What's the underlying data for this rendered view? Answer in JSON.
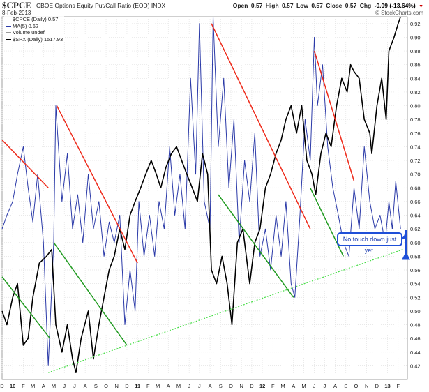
{
  "header": {
    "ticker": "$CPCE",
    "description": "CBOE Options Equity Put/Call Ratio (EOD)",
    "exchange": "INDX",
    "date": "8-Feb-2013",
    "brand": "© StockCharts.com",
    "open_label": "Open",
    "open": "0.57",
    "high_label": "High",
    "high": "0.57",
    "low_label": "Low",
    "low": "0.57",
    "close_label": "Close",
    "close": "0.57",
    "chg_label": "Chg",
    "chg": "-0.09 (-13.64%)"
  },
  "legend": {
    "items": [
      {
        "label": "$CPCE (Daily) 0.57",
        "color": "#ffffff"
      },
      {
        "label": "MA(5) 0.62",
        "color": "#2b3aa8"
      },
      {
        "label": "Volume undef",
        "color": "#999999"
      },
      {
        "label": "$SPX (Daily) 1517.93",
        "color": "#000000"
      }
    ]
  },
  "annotation": {
    "text": "No touch down just yet.",
    "color": "#1f4fd8"
  },
  "colors": {
    "ma": "#2b3aa8",
    "spx": "#000000",
    "down_trend": "#ee2a1a",
    "green_trend": "#1f9a1f",
    "support": "#44dd44",
    "arrow": "#1f4fd8"
  },
  "chart_data": {
    "type": "line",
    "y_axis": {
      "side": "right",
      "ylim": [
        0.4,
        0.93
      ],
      "ticks": [
        0.42,
        0.44,
        0.46,
        0.48,
        0.5,
        0.52,
        0.54,
        0.56,
        0.58,
        0.6,
        0.62,
        0.64,
        0.66,
        0.68,
        0.7,
        0.72,
        0.74,
        0.76,
        0.78,
        0.8,
        0.82,
        0.84,
        0.86,
        0.88,
        0.9,
        0.92
      ]
    },
    "x_axis": {
      "range": [
        "2009-12-01",
        "2013-02-28"
      ],
      "ticks": [
        {
          "date": "2009-12-01",
          "label": "D"
        },
        {
          "date": "2010-01-01",
          "label": "10"
        },
        {
          "date": "2010-02-01",
          "label": "F"
        },
        {
          "date": "2010-03-01",
          "label": "M"
        },
        {
          "date": "2010-04-01",
          "label": "A"
        },
        {
          "date": "2010-05-01",
          "label": "M"
        },
        {
          "date": "2010-06-01",
          "label": "J"
        },
        {
          "date": "2010-07-01",
          "label": "J"
        },
        {
          "date": "2010-08-01",
          "label": "A"
        },
        {
          "date": "2010-09-01",
          "label": "S"
        },
        {
          "date": "2010-10-01",
          "label": "O"
        },
        {
          "date": "2010-11-01",
          "label": "N"
        },
        {
          "date": "2010-12-01",
          "label": "D"
        },
        {
          "date": "2011-01-01",
          "label": "11"
        },
        {
          "date": "2011-02-01",
          "label": "F"
        },
        {
          "date": "2011-03-01",
          "label": "M"
        },
        {
          "date": "2011-04-01",
          "label": "A"
        },
        {
          "date": "2011-05-01",
          "label": "M"
        },
        {
          "date": "2011-06-01",
          "label": "J"
        },
        {
          "date": "2011-07-01",
          "label": "J"
        },
        {
          "date": "2011-08-01",
          "label": "A"
        },
        {
          "date": "2011-09-01",
          "label": "S"
        },
        {
          "date": "2011-10-01",
          "label": "O"
        },
        {
          "date": "2011-11-01",
          "label": "N"
        },
        {
          "date": "2011-12-01",
          "label": "D"
        },
        {
          "date": "2012-01-01",
          "label": "12"
        },
        {
          "date": "2012-02-01",
          "label": "F"
        },
        {
          "date": "2012-03-01",
          "label": "M"
        },
        {
          "date": "2012-04-01",
          "label": "A"
        },
        {
          "date": "2012-05-01",
          "label": "M"
        },
        {
          "date": "2012-06-01",
          "label": "J"
        },
        {
          "date": "2012-07-01",
          "label": "J"
        },
        {
          "date": "2012-08-01",
          "label": "A"
        },
        {
          "date": "2012-09-01",
          "label": "S"
        },
        {
          "date": "2012-10-01",
          "label": "O"
        },
        {
          "date": "2012-11-01",
          "label": "N"
        },
        {
          "date": "2012-12-01",
          "label": "D"
        },
        {
          "date": "2013-01-01",
          "label": "13"
        },
        {
          "date": "2013-02-01",
          "label": "F"
        }
      ]
    },
    "grid": true,
    "series": [
      {
        "name": "MA(5)",
        "points": [
          [
            "2009-12-01",
            0.62
          ],
          [
            "2009-12-15",
            0.64
          ],
          [
            "2010-01-01",
            0.66
          ],
          [
            "2010-01-15",
            0.7
          ],
          [
            "2010-02-01",
            0.74
          ],
          [
            "2010-02-15",
            0.68
          ],
          [
            "2010-03-01",
            0.63
          ],
          [
            "2010-03-15",
            0.7
          ],
          [
            "2010-04-01",
            0.6
          ],
          [
            "2010-04-15",
            0.42
          ],
          [
            "2010-05-01",
            0.6
          ],
          [
            "2010-05-07",
            0.8
          ],
          [
            "2010-05-25",
            0.66
          ],
          [
            "2010-06-10",
            0.73
          ],
          [
            "2010-06-25",
            0.62
          ],
          [
            "2010-07-10",
            0.67
          ],
          [
            "2010-07-25",
            0.6
          ],
          [
            "2010-08-10",
            0.7
          ],
          [
            "2010-08-25",
            0.62
          ],
          [
            "2010-09-10",
            0.66
          ],
          [
            "2010-09-25",
            0.58
          ],
          [
            "2010-10-10",
            0.63
          ],
          [
            "2010-10-25",
            0.6
          ],
          [
            "2010-11-10",
            0.64
          ],
          [
            "2010-11-25",
            0.48
          ],
          [
            "2010-12-10",
            0.56
          ],
          [
            "2010-12-25",
            0.5
          ],
          [
            "2011-01-05",
            0.66
          ],
          [
            "2011-01-20",
            0.58
          ],
          [
            "2011-02-05",
            0.64
          ],
          [
            "2011-02-20",
            0.58
          ],
          [
            "2011-03-05",
            0.66
          ],
          [
            "2011-03-20",
            0.62
          ],
          [
            "2011-04-05",
            0.74
          ],
          [
            "2011-04-20",
            0.64
          ],
          [
            "2011-05-05",
            0.7
          ],
          [
            "2011-05-20",
            0.62
          ],
          [
            "2011-06-05",
            0.84
          ],
          [
            "2011-06-20",
            0.7
          ],
          [
            "2011-07-01",
            0.92
          ],
          [
            "2011-07-15",
            0.66
          ],
          [
            "2011-08-01",
            0.62
          ],
          [
            "2011-08-10",
            0.93
          ],
          [
            "2011-08-25",
            0.74
          ],
          [
            "2011-09-10",
            0.84
          ],
          [
            "2011-09-25",
            0.68
          ],
          [
            "2011-10-10",
            0.78
          ],
          [
            "2011-10-25",
            0.6
          ],
          [
            "2011-11-10",
            0.72
          ],
          [
            "2011-11-25",
            0.66
          ],
          [
            "2011-12-10",
            0.76
          ],
          [
            "2011-12-25",
            0.58
          ],
          [
            "2012-01-10",
            0.62
          ],
          [
            "2012-01-25",
            0.56
          ],
          [
            "2012-02-10",
            0.64
          ],
          [
            "2012-02-25",
            0.58
          ],
          [
            "2012-03-10",
            0.66
          ],
          [
            "2012-03-25",
            0.54
          ],
          [
            "2012-04-05",
            0.52
          ],
          [
            "2012-04-20",
            0.64
          ],
          [
            "2012-05-05",
            0.78
          ],
          [
            "2012-05-20",
            0.72
          ],
          [
            "2012-06-01",
            0.9
          ],
          [
            "2012-06-10",
            0.8
          ],
          [
            "2012-06-25",
            0.86
          ],
          [
            "2012-07-10",
            0.74
          ],
          [
            "2012-07-25",
            0.68
          ],
          [
            "2012-08-10",
            0.64
          ],
          [
            "2012-08-25",
            0.6
          ],
          [
            "2012-09-10",
            0.58
          ],
          [
            "2012-09-25",
            0.68
          ],
          [
            "2012-10-10",
            0.62
          ],
          [
            "2012-10-25",
            0.74
          ],
          [
            "2012-11-10",
            0.66
          ],
          [
            "2012-11-25",
            0.62
          ],
          [
            "2012-12-10",
            0.64
          ],
          [
            "2012-12-25",
            0.6
          ],
          [
            "2013-01-05",
            0.66
          ],
          [
            "2013-01-15",
            0.62
          ],
          [
            "2013-01-25",
            0.69
          ],
          [
            "2013-02-08",
            0.62
          ]
        ]
      },
      {
        "name": "$SPX (Daily)",
        "points": [
          [
            "2009-12-01",
            0.5
          ],
          [
            "2009-12-15",
            0.48
          ],
          [
            "2010-01-01",
            0.52
          ],
          [
            "2010-01-15",
            0.54
          ],
          [
            "2010-02-01",
            0.45
          ],
          [
            "2010-02-15",
            0.46
          ],
          [
            "2010-03-01",
            0.52
          ],
          [
            "2010-03-20",
            0.57
          ],
          [
            "2010-04-10",
            0.58
          ],
          [
            "2010-04-25",
            0.59
          ],
          [
            "2010-05-07",
            0.48
          ],
          [
            "2010-05-25",
            0.44
          ],
          [
            "2010-06-10",
            0.48
          ],
          [
            "2010-06-25",
            0.43
          ],
          [
            "2010-07-05",
            0.41
          ],
          [
            "2010-07-20",
            0.46
          ],
          [
            "2010-08-10",
            0.5
          ],
          [
            "2010-08-25",
            0.43
          ],
          [
            "2010-09-10",
            0.48
          ],
          [
            "2010-09-25",
            0.52
          ],
          [
            "2010-10-10",
            0.56
          ],
          [
            "2010-10-25",
            0.58
          ],
          [
            "2010-11-10",
            0.62
          ],
          [
            "2010-11-25",
            0.59
          ],
          [
            "2010-12-10",
            0.64
          ],
          [
            "2010-12-25",
            0.66
          ],
          [
            "2011-01-10",
            0.68
          ],
          [
            "2011-01-25",
            0.7
          ],
          [
            "2011-02-10",
            0.72
          ],
          [
            "2011-02-25",
            0.7
          ],
          [
            "2011-03-10",
            0.68
          ],
          [
            "2011-03-25",
            0.71
          ],
          [
            "2011-04-10",
            0.73
          ],
          [
            "2011-04-25",
            0.74
          ],
          [
            "2011-05-10",
            0.72
          ],
          [
            "2011-05-25",
            0.7
          ],
          [
            "2011-06-10",
            0.68
          ],
          [
            "2011-06-25",
            0.66
          ],
          [
            "2011-07-10",
            0.73
          ],
          [
            "2011-07-25",
            0.7
          ],
          [
            "2011-08-05",
            0.56
          ],
          [
            "2011-08-20",
            0.54
          ],
          [
            "2011-09-05",
            0.58
          ],
          [
            "2011-09-20",
            0.54
          ],
          [
            "2011-10-04",
            0.48
          ],
          [
            "2011-10-20",
            0.6
          ],
          [
            "2011-11-05",
            0.62
          ],
          [
            "2011-11-25",
            0.54
          ],
          [
            "2011-12-10",
            0.6
          ],
          [
            "2011-12-25",
            0.62
          ],
          [
            "2012-01-10",
            0.68
          ],
          [
            "2012-01-25",
            0.7
          ],
          [
            "2012-02-10",
            0.73
          ],
          [
            "2012-02-25",
            0.75
          ],
          [
            "2012-03-10",
            0.78
          ],
          [
            "2012-03-25",
            0.8
          ],
          [
            "2012-04-10",
            0.76
          ],
          [
            "2012-04-25",
            0.8
          ],
          [
            "2012-05-10",
            0.72
          ],
          [
            "2012-05-25",
            0.7
          ],
          [
            "2012-06-05",
            0.67
          ],
          [
            "2012-06-20",
            0.73
          ],
          [
            "2012-07-05",
            0.76
          ],
          [
            "2012-07-20",
            0.74
          ],
          [
            "2012-08-05",
            0.8
          ],
          [
            "2012-08-20",
            0.84
          ],
          [
            "2012-09-05",
            0.82
          ],
          [
            "2012-09-15",
            0.86
          ],
          [
            "2012-09-25",
            0.85
          ],
          [
            "2012-10-10",
            0.84
          ],
          [
            "2012-10-25",
            0.78
          ],
          [
            "2012-11-10",
            0.76
          ],
          [
            "2012-11-16",
            0.73
          ],
          [
            "2012-12-01",
            0.8
          ],
          [
            "2012-12-15",
            0.84
          ],
          [
            "2012-12-28",
            0.78
          ],
          [
            "2013-01-05",
            0.88
          ],
          [
            "2013-01-20",
            0.9
          ],
          [
            "2013-02-01",
            0.92
          ],
          [
            "2013-02-08",
            0.93
          ]
        ]
      }
    ],
    "trend_lines": [
      {
        "color": "red",
        "from": [
          "2009-12-01",
          0.75
        ],
        "to": [
          "2010-04-15",
          0.68
        ]
      },
      {
        "color": "red",
        "from": [
          "2010-05-10",
          0.8
        ],
        "to": [
          "2011-01-01",
          0.57
        ]
      },
      {
        "color": "red",
        "from": [
          "2011-08-05",
          0.92
        ],
        "to": [
          "2012-05-20",
          0.62
        ]
      },
      {
        "color": "red",
        "from": [
          "2012-06-01",
          0.88
        ],
        "to": [
          "2012-09-25",
          0.69
        ]
      },
      {
        "color": "green",
        "from": [
          "2009-12-01",
          0.55
        ],
        "to": [
          "2010-04-20",
          0.46
        ]
      },
      {
        "color": "green",
        "from": [
          "2010-05-01",
          0.6
        ],
        "to": [
          "2010-12-01",
          0.45
        ]
      },
      {
        "color": "green",
        "from": [
          "2011-08-25",
          0.67
        ],
        "to": [
          "2012-04-01",
          0.52
        ]
      },
      {
        "color": "green",
        "from": [
          "2012-05-20",
          0.68
        ],
        "to": [
          "2012-08-25",
          0.58
        ]
      },
      {
        "color": "green-dotted",
        "from": [
          "2010-04-15",
          0.41
        ],
        "to": [
          "2013-02-15",
          0.59
        ]
      }
    ]
  }
}
